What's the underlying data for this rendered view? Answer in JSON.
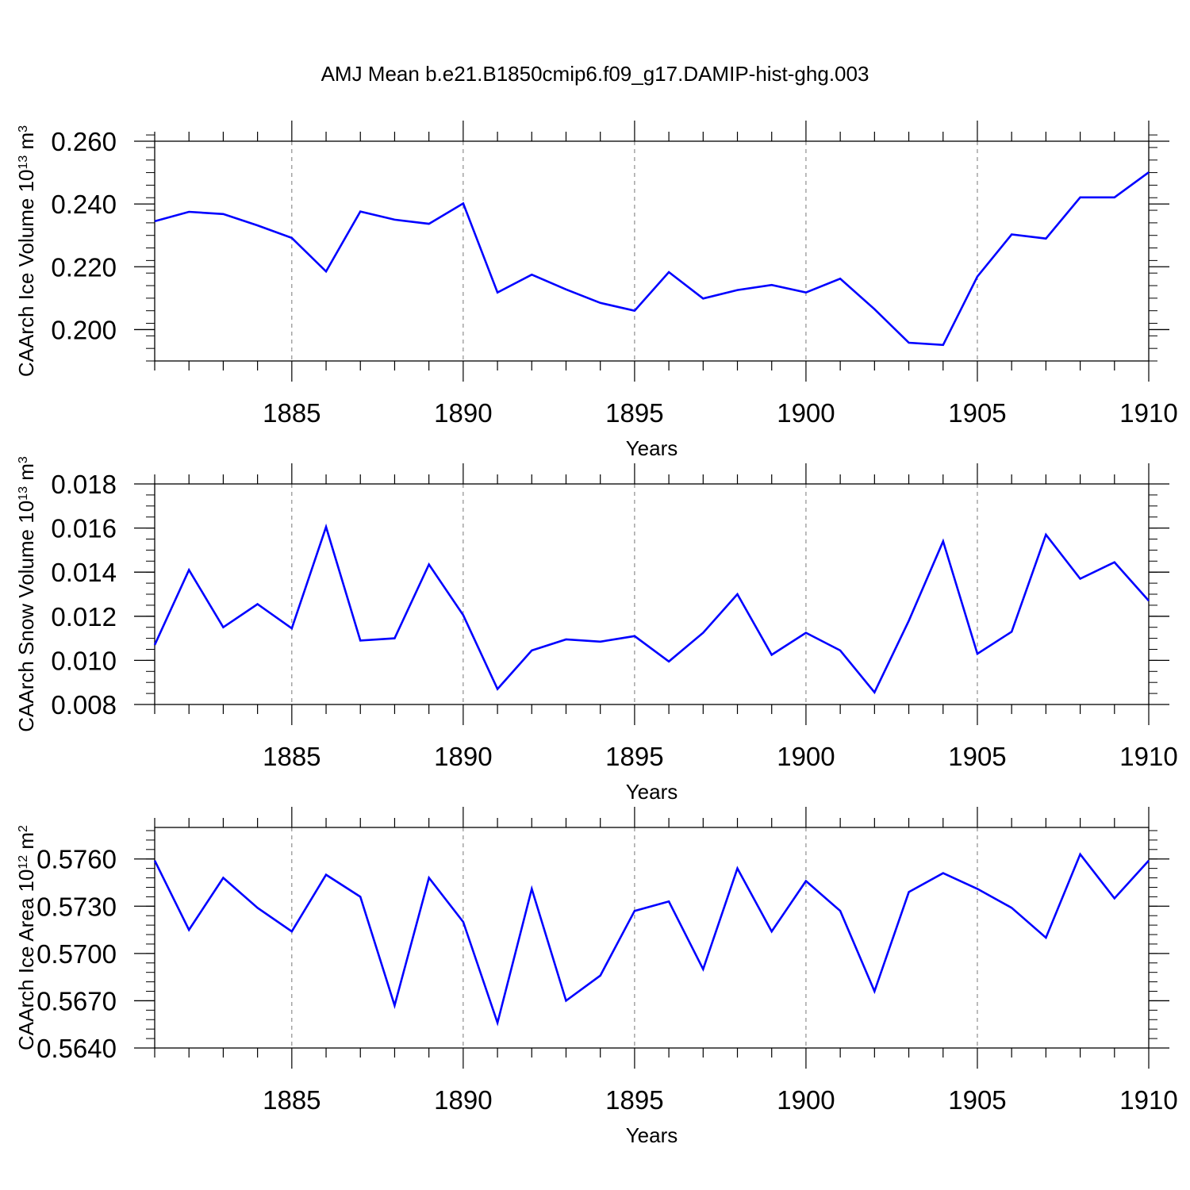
{
  "title": "AMJ Mean b.e21.B1850cmip6.f09_g17.DAMIP-hist-ghg.003",
  "line_color": "#0000ff",
  "chart_data": [
    {
      "type": "line",
      "ylabel": "CAArch Ice Volume 10",
      "ylabel_exp": "13",
      "ylabel_unit": " m",
      "ylabel_unit_exp": "3",
      "xlabel": "Years",
      "xlim": [
        1881,
        1910
      ],
      "ylim": [
        0.19,
        0.26
      ],
      "yticks": [
        0.2,
        0.22,
        0.24,
        0.26
      ],
      "ytick_labels": [
        "0.200",
        "0.220",
        "0.240",
        "0.260"
      ],
      "yminor_step": 0.004,
      "xticks": [
        1885,
        1890,
        1895,
        1900,
        1905,
        1910
      ],
      "xtick_labels": [
        "1885",
        "1890",
        "1895",
        "1900",
        "1905",
        "1910"
      ],
      "x": [
        1881,
        1882,
        1883,
        1884,
        1885,
        1886,
        1887,
        1888,
        1889,
        1890,
        1891,
        1892,
        1893,
        1894,
        1895,
        1896,
        1897,
        1898,
        1899,
        1900,
        1901,
        1902,
        1903,
        1904,
        1905,
        1906,
        1907,
        1908,
        1909,
        1910
      ],
      "values": [
        0.2345,
        0.2375,
        0.2368,
        0.2332,
        0.2292,
        0.2185,
        0.2376,
        0.235,
        0.2337,
        0.2402,
        0.2118,
        0.2175,
        0.2128,
        0.2085,
        0.206,
        0.2183,
        0.2099,
        0.2126,
        0.2142,
        0.2118,
        0.2162,
        0.2065,
        0.1958,
        0.1951,
        0.2169,
        0.2303,
        0.229,
        0.2421,
        0.2421,
        0.2501
      ]
    },
    {
      "type": "line",
      "ylabel": "CAArch Snow Volume 10",
      "ylabel_exp": "13",
      "ylabel_unit": " m",
      "ylabel_unit_exp": "3",
      "xlabel": "Years",
      "xlim": [
        1881,
        1910
      ],
      "ylim": [
        0.008,
        0.018
      ],
      "yticks": [
        0.008,
        0.01,
        0.012,
        0.014,
        0.016,
        0.018
      ],
      "ytick_labels": [
        "0.008",
        "0.010",
        "0.012",
        "0.014",
        "0.016",
        "0.018"
      ],
      "yminor_step": 0.0005,
      "xticks": [
        1885,
        1890,
        1895,
        1900,
        1905,
        1910
      ],
      "xtick_labels": [
        "1885",
        "1890",
        "1895",
        "1900",
        "1905",
        "1910"
      ],
      "x": [
        1881,
        1882,
        1883,
        1884,
        1885,
        1886,
        1887,
        1888,
        1889,
        1890,
        1891,
        1892,
        1893,
        1894,
        1895,
        1896,
        1897,
        1898,
        1899,
        1900,
        1901,
        1902,
        1903,
        1904,
        1905,
        1906,
        1907,
        1908,
        1909,
        1910
      ],
      "values": [
        0.0107,
        0.0141,
        0.0115,
        0.01255,
        0.01145,
        0.01605,
        0.0109,
        0.011,
        0.01435,
        0.01205,
        0.0087,
        0.01045,
        0.01095,
        0.01085,
        0.0111,
        0.00995,
        0.01125,
        0.013,
        0.01025,
        0.01125,
        0.01045,
        0.00855,
        0.0118,
        0.0154,
        0.0103,
        0.0113,
        0.0157,
        0.0137,
        0.01445,
        0.0127
      ]
    },
    {
      "type": "line",
      "ylabel": "CAArch Ice Area 10",
      "ylabel_exp": "12",
      "ylabel_unit": " m",
      "ylabel_unit_exp": "2",
      "xlabel": "Years",
      "xlim": [
        1881,
        1910
      ],
      "ylim": [
        0.564,
        0.578
      ],
      "yticks": [
        0.564,
        0.567,
        0.57,
        0.573,
        0.576
      ],
      "ytick_labels": [
        "0.5640",
        "0.5670",
        "0.5700",
        "0.5730",
        "0.5760"
      ],
      "yminor_step": 0.0006,
      "xticks": [
        1885,
        1890,
        1895,
        1900,
        1905,
        1910
      ],
      "xtick_labels": [
        "1885",
        "1890",
        "1895",
        "1900",
        "1905",
        "1910"
      ],
      "x": [
        1881,
        1882,
        1883,
        1884,
        1885,
        1886,
        1887,
        1888,
        1889,
        1890,
        1891,
        1892,
        1893,
        1894,
        1895,
        1896,
        1897,
        1898,
        1899,
        1900,
        1901,
        1902,
        1903,
        1904,
        1905,
        1906,
        1907,
        1908,
        1909,
        1910
      ],
      "values": [
        0.5759,
        0.5715,
        0.5748,
        0.5729,
        0.5714,
        0.575,
        0.5736,
        0.5667,
        0.5748,
        0.572,
        0.5656,
        0.5741,
        0.567,
        0.5686,
        0.5727,
        0.5733,
        0.569,
        0.5754,
        0.5714,
        0.5746,
        0.5727,
        0.5676,
        0.5739,
        0.5751,
        0.5741,
        0.5729,
        0.571,
        0.5763,
        0.5735,
        0.5759
      ]
    }
  ]
}
